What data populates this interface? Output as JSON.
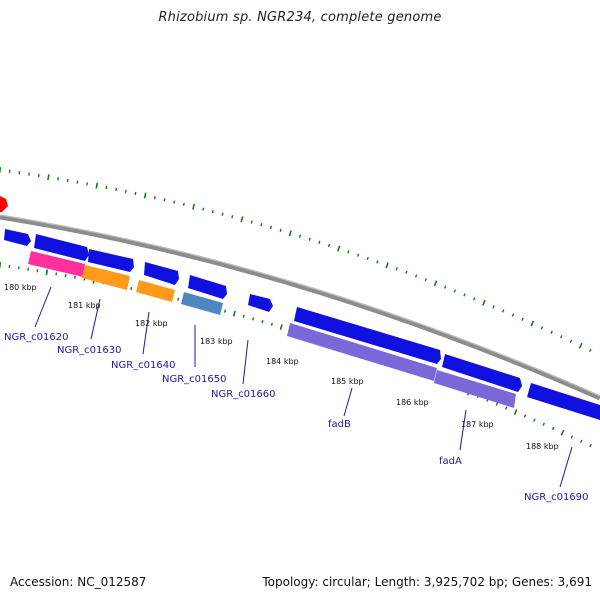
{
  "title": "Rhizobium sp. NGR234, complete genome",
  "footer": {
    "accession": "Accession: NC_012587",
    "stats": "Topology: circular; Length: 3,925,702 bp; Genes: 3,691"
  },
  "colors": {
    "backbone": "#8c8c8c",
    "tick": "#1a7a1a",
    "gene_blue": "#1010e0",
    "gene_pink": "#ff2fa0",
    "gene_orange": "#ff9a1a",
    "gene_steel": "#4f86c0",
    "gene_purple": "#7b68d8",
    "marker_red": "#ff0000",
    "label": "#1a1aa0"
  },
  "scale_labels": [
    "180 kbp",
    "181 kbp",
    "182 kbp",
    "183 kbp",
    "184 kbp",
    "185 kbp",
    "186 kbp",
    "187 kbp",
    "188 kbp"
  ],
  "gene_labels": [
    "NGR_c01620",
    "NGR_c01630",
    "NGR_c01640",
    "NGR_c01650",
    "NGR_c01660",
    "fadB",
    "fadA",
    "NGR_c01690"
  ]
}
